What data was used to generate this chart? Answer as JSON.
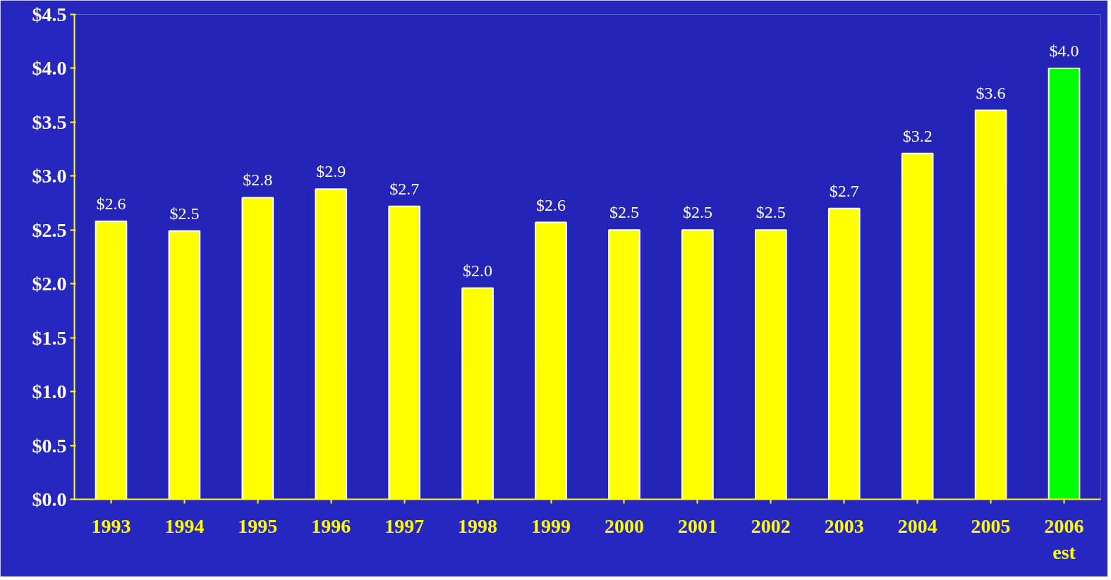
{
  "chart_data": {
    "type": "bar",
    "categories": [
      "1993",
      "1994",
      "1995",
      "1996",
      "1997",
      "1998",
      "1999",
      "2000",
      "2001",
      "2002",
      "2003",
      "2004",
      "2005",
      "2006\nest"
    ],
    "values": [
      2.58,
      2.49,
      2.8,
      2.88,
      2.72,
      1.96,
      2.57,
      2.5,
      2.5,
      2.5,
      2.7,
      3.21,
      3.61,
      4.0
    ],
    "colors": [
      "#ffff00",
      "#ffff00",
      "#ffff00",
      "#ffff00",
      "#ffff00",
      "#ffff00",
      "#ffff00",
      "#ffff00",
      "#ffff00",
      "#ffff00",
      "#ffff00",
      "#ffff00",
      "#ffff00",
      "#00ff00"
    ],
    "value_labels": [
      "$2.6",
      "$2.5",
      "$2.8",
      "$2.9",
      "$2.7",
      "$2.0",
      "$2.6",
      "$2.5",
      "$2.5",
      "$2.5",
      "$2.7",
      "$3.2",
      "$3.6",
      "$4.0"
    ],
    "ylim": [
      0,
      4.5
    ],
    "yticks": [
      {
        "value": 0,
        "label": "$0.0"
      },
      {
        "value": 0.5,
        "label": "$0.5"
      },
      {
        "value": 1,
        "label": "$1.0"
      },
      {
        "value": 1.5,
        "label": "$1.5"
      },
      {
        "value": 2,
        "label": "$2.0"
      },
      {
        "value": 2.5,
        "label": "$2.5"
      },
      {
        "value": 3,
        "label": "$3.0"
      },
      {
        "value": 3.5,
        "label": "$3.5"
      },
      {
        "value": 4,
        "label": "$4.0"
      },
      {
        "value": 4.5,
        "label": "$4.5"
      }
    ],
    "grid": false
  }
}
